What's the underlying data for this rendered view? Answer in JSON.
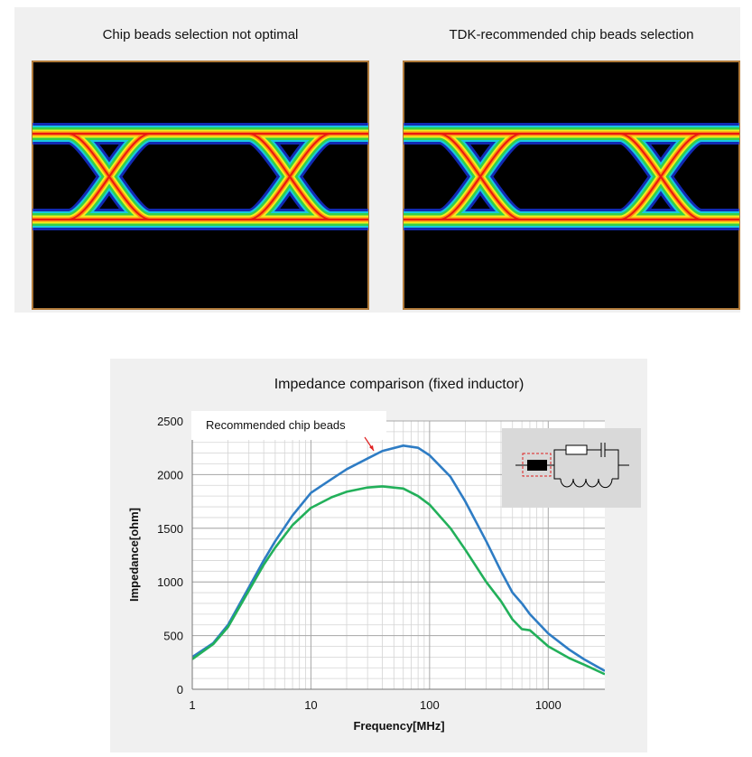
{
  "panels": {
    "left_title": "Chip beads selection not optimal",
    "right_title": "TDK-recommended chip beads selection"
  },
  "chart_data": {
    "type": "line",
    "title": "Impedance comparison (fixed inductor)",
    "x_label": "Frequency[MHz]",
    "y_label": "Impedance[ohm]",
    "annotation": "Recommended chip beads",
    "x": [
      1,
      1.5,
      2,
      3,
      4,
      5,
      7,
      10,
      15,
      20,
      30,
      40,
      60,
      80,
      100,
      150,
      200,
      300,
      400,
      500,
      600,
      700,
      1000,
      1500,
      2000,
      3000
    ],
    "series": [
      {
        "color": "#2e7cc4",
        "values": [
          300,
          430,
          600,
          950,
          1200,
          1380,
          1620,
          1830,
          1960,
          2050,
          2150,
          2220,
          2270,
          2250,
          2180,
          1980,
          1750,
          1380,
          1100,
          900,
          800,
          700,
          520,
          370,
          280,
          170
        ]
      },
      {
        "color": "#22b05a",
        "values": [
          280,
          420,
          580,
          920,
          1160,
          1320,
          1530,
          1690,
          1790,
          1840,
          1880,
          1890,
          1870,
          1800,
          1720,
          1500,
          1300,
          1000,
          820,
          650,
          560,
          550,
          400,
          290,
          230,
          140
        ]
      }
    ],
    "xlim": [
      1,
      3000
    ],
    "xticks": [
      1,
      10,
      100,
      1000
    ],
    "x_log": true,
    "ylim": [
      0,
      2500
    ],
    "yticks": [
      0,
      500,
      1000,
      1500,
      2000,
      2500
    ],
    "grid": true,
    "minor_grid": true
  }
}
